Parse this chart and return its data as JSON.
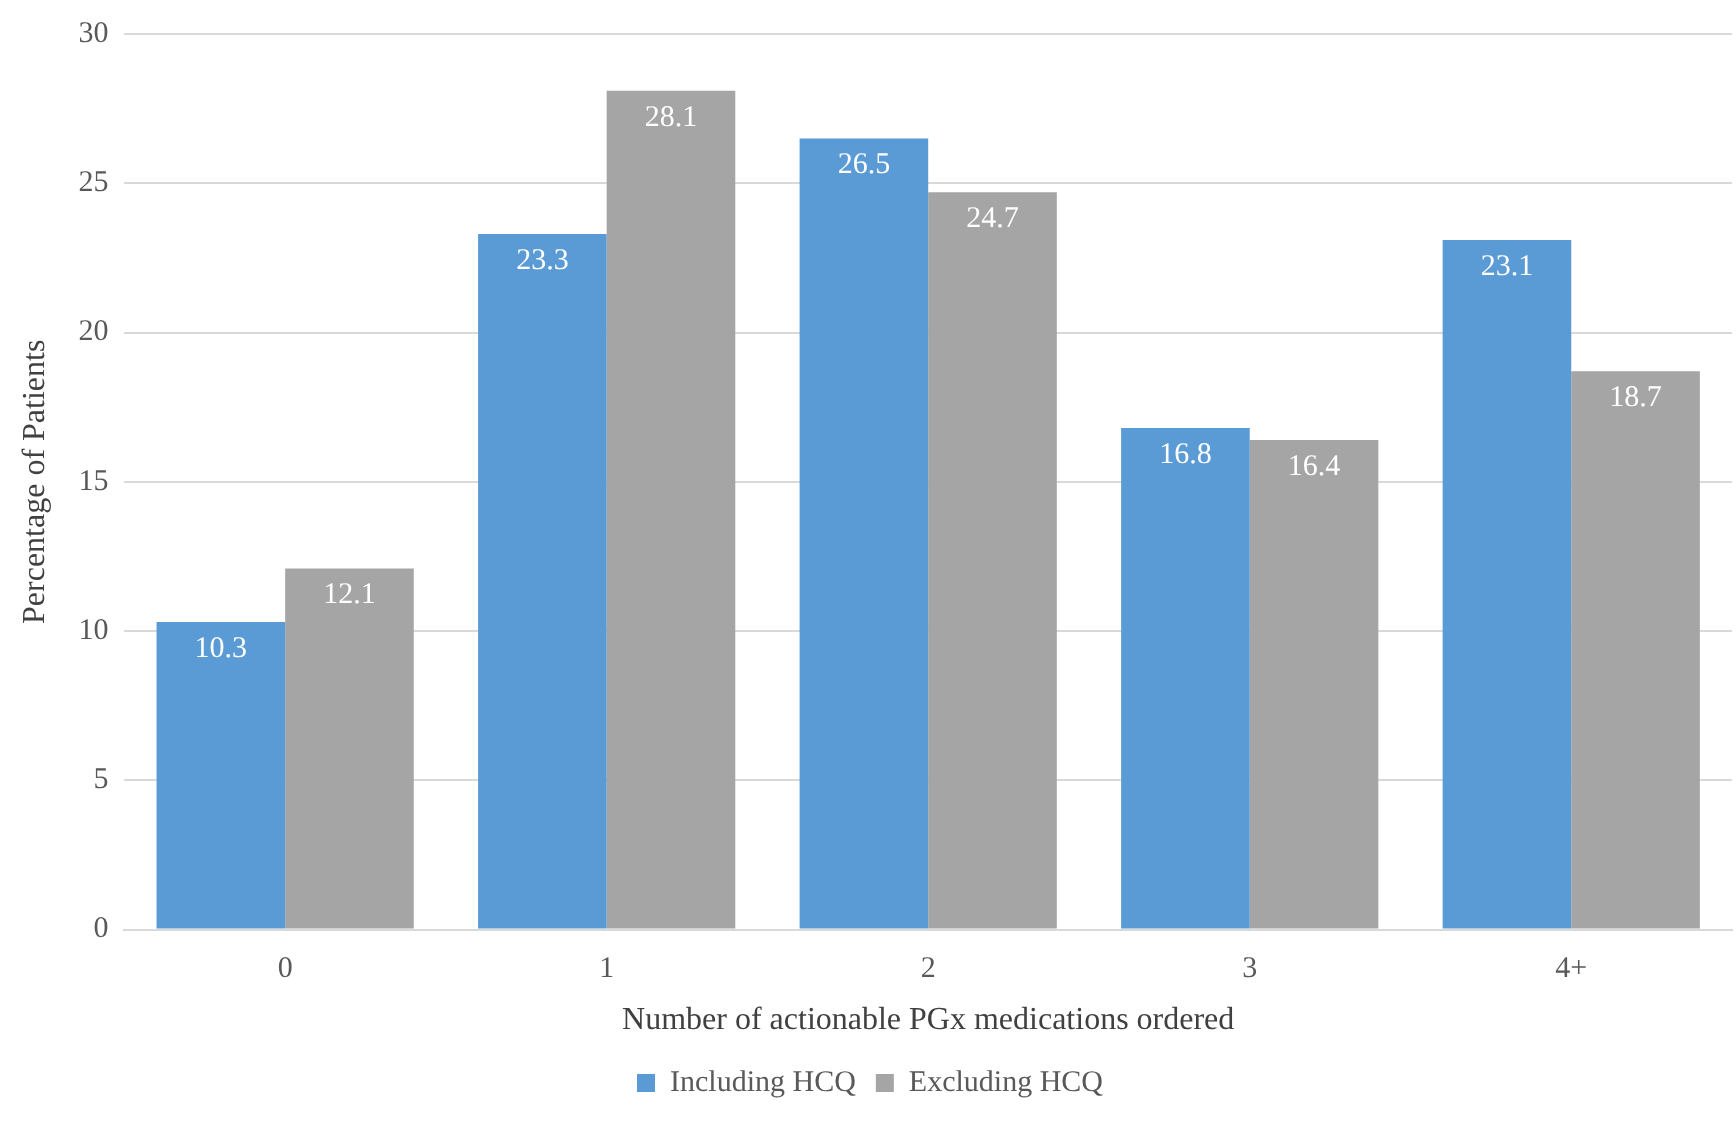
{
  "chart_data": {
    "type": "bar",
    "xlabel": "Number of actionable PGx medications ordered",
    "ylabel": "Percentage of Patients",
    "categories": [
      "0",
      "1",
      "2",
      "3",
      "4+"
    ],
    "series": [
      {
        "name": "Including HCQ",
        "color": "#5b9bd5",
        "values": [
          10.3,
          23.3,
          26.5,
          16.8,
          23.1
        ]
      },
      {
        "name": "Excluding HCQ",
        "color": "#a5a5a5",
        "values": [
          12.1,
          28.1,
          24.7,
          16.4,
          18.7
        ]
      }
    ],
    "ylim": [
      0,
      30
    ],
    "yticks": [
      0,
      5,
      10,
      15,
      20,
      25,
      30
    ],
    "grid": "y",
    "legend": "bottom",
    "data_labels": true
  }
}
